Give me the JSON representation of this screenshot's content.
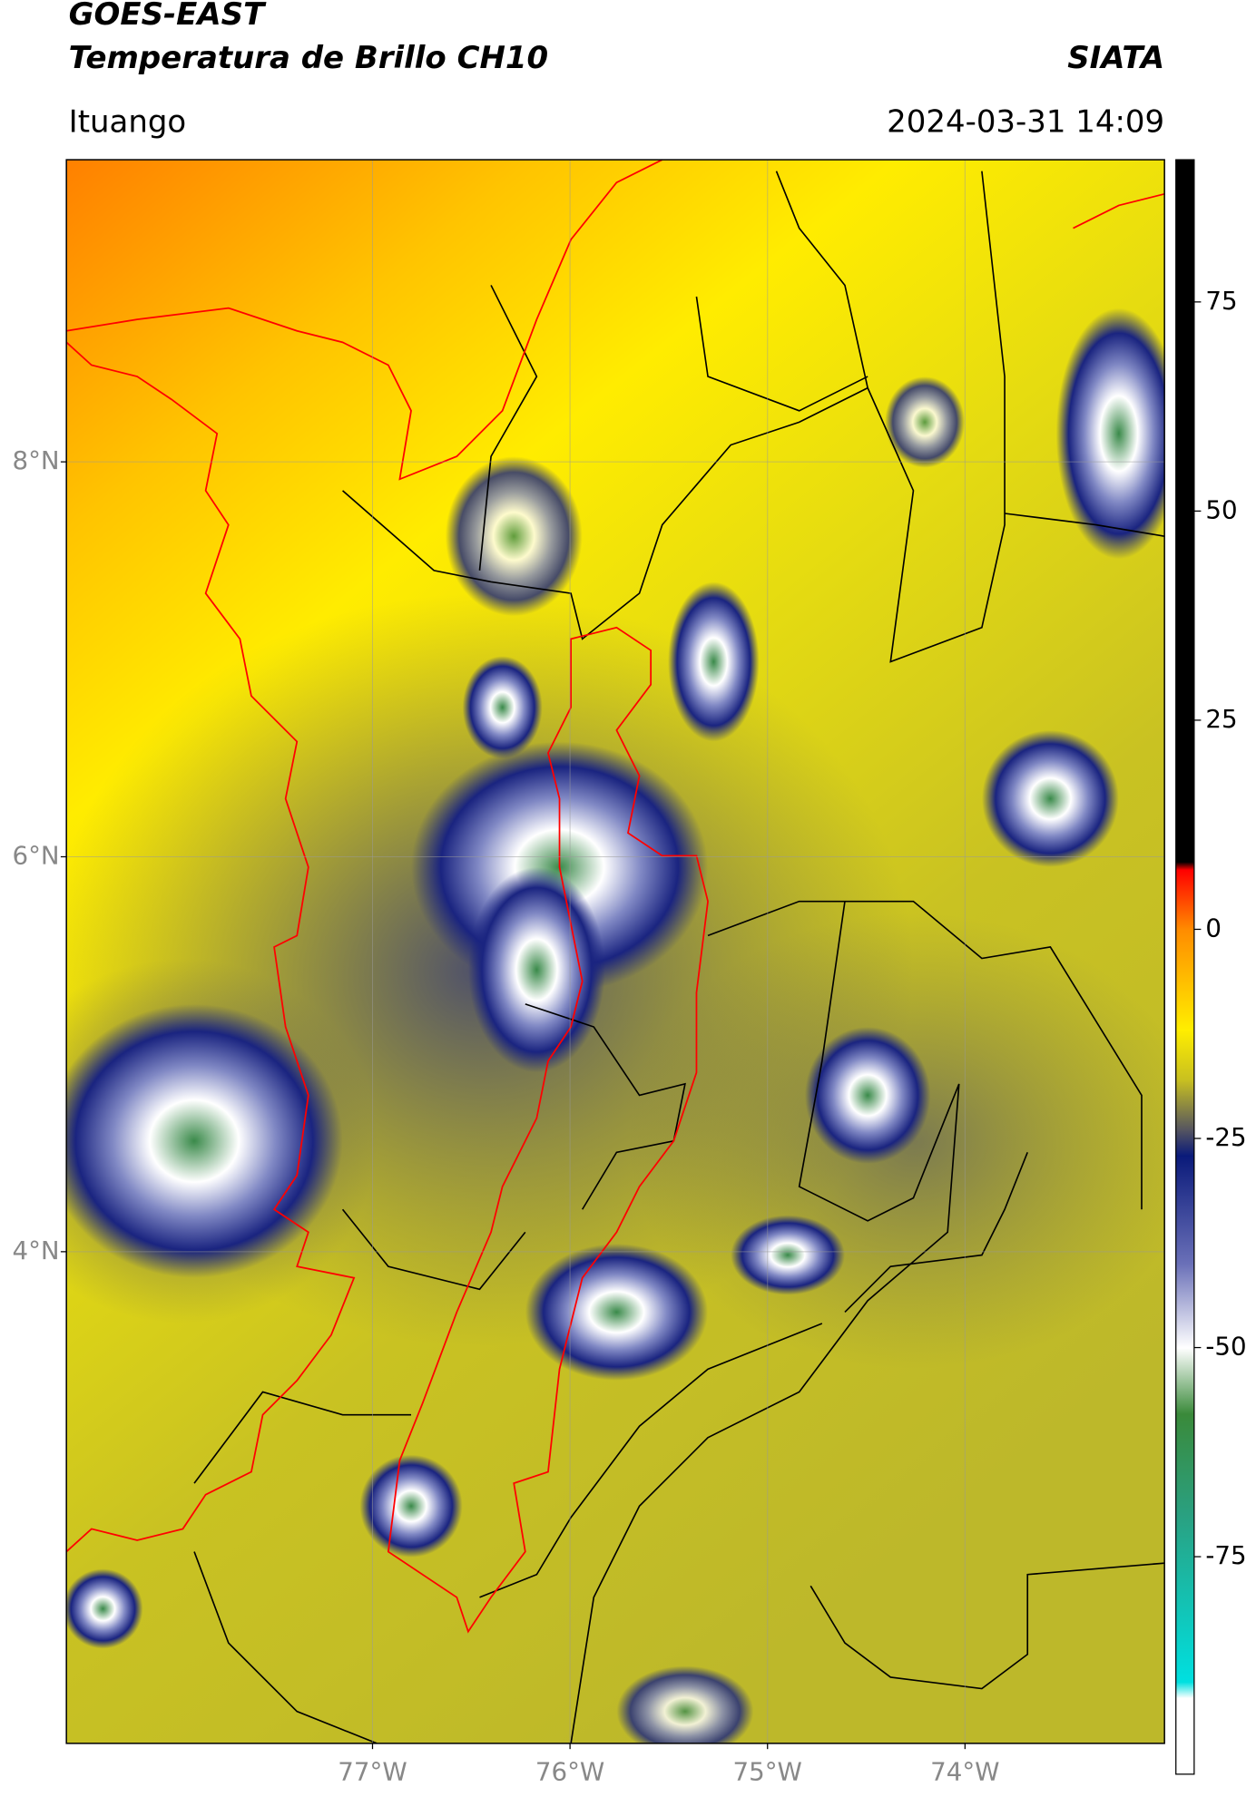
{
  "header": {
    "title": "GOES-EAST",
    "subtitle": "Temperatura de Brillo CH10",
    "source": "SIATA",
    "place": "Ituango",
    "datetime": "2024-03-31 14:09"
  },
  "map": {
    "lonlim": [
      -78.55,
      -72.99
    ],
    "latlim": [
      1.51,
      9.53
    ],
    "lat_ticks": [
      {
        "value": 8,
        "label": "8°N"
      },
      {
        "value": 6,
        "label": "6°N"
      },
      {
        "value": 4,
        "label": "4°N"
      }
    ],
    "lon_ticks": [
      {
        "value": -77,
        "label": "77°W"
      },
      {
        "value": -76,
        "label": "76°W"
      },
      {
        "value": -75,
        "label": "75°W"
      },
      {
        "value": -74,
        "label": "74°W"
      }
    ]
  },
  "colorbar": {
    "lim": [
      -101,
      92
    ],
    "ticks": [
      75,
      50,
      25,
      0,
      -25,
      -50,
      -75
    ]
  }
}
